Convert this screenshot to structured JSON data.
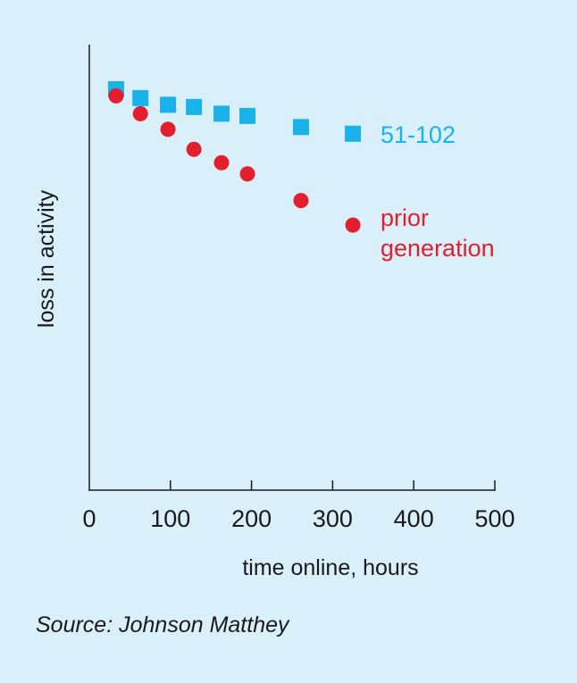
{
  "chart_data": {
    "type": "scatter",
    "xlabel": "time online, hours",
    "ylabel": "loss in activity",
    "xlim": [
      0,
      500
    ],
    "ylim": [
      0,
      100
    ],
    "x_ticks": [
      0,
      100,
      200,
      300,
      400,
      500
    ],
    "grid": false,
    "y_tick_labels_shown": false,
    "series": [
      {
        "name": "51-102",
        "marker": "square",
        "color": "#1ab2ea",
        "x": [
          33,
          63,
          97,
          129,
          163,
          195,
          261,
          325
        ],
        "y": [
          90,
          88,
          86.5,
          86,
          84.5,
          84,
          81.5,
          80
        ]
      },
      {
        "name": "prior generation",
        "label_lines": [
          "prior",
          "generation"
        ],
        "marker": "circle",
        "color": "#e31e2d",
        "x": [
          33,
          63,
          97,
          129,
          163,
          195,
          261,
          325
        ],
        "y": [
          88.5,
          84.5,
          81,
          76.5,
          73.5,
          71,
          65,
          59.5
        ]
      }
    ]
  },
  "source": "Source: Johnson Matthey"
}
